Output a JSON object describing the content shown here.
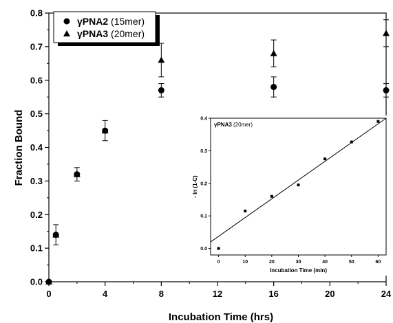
{
  "chart_data": [
    {
      "type": "scatter",
      "title": "",
      "xlabel": "Incubation Time (hrs)",
      "ylabel": "Fraction Bound",
      "xlim": [
        0,
        24
      ],
      "ylim": [
        0,
        0.8
      ],
      "xticks": [
        "0",
        "4",
        "8",
        "12",
        "16",
        "20",
        "24"
      ],
      "yticks": [
        "0.0",
        "0.1",
        "0.2",
        "0.3",
        "0.4",
        "0.5",
        "0.6",
        "0.7",
        "0.8"
      ],
      "x": [
        0,
        0.5,
        2,
        4,
        8,
        16,
        24
      ],
      "legend": {
        "placement": "top-left",
        "entries": [
          {
            "bold": "γPNA2",
            "rest": " (15mer)",
            "marker": "circle"
          },
          {
            "bold": "γPNA3",
            "rest": " (20mer)",
            "marker": "triangle"
          }
        ]
      },
      "series": [
        {
          "name": "γPNA2 (15mer)",
          "marker": "circle",
          "values": [
            0.0,
            0.14,
            0.32,
            0.45,
            0.57,
            0.58,
            0.57
          ],
          "errors": [
            0.0,
            0.0,
            0.0,
            0.0,
            0.02,
            0.03,
            0.02
          ]
        },
        {
          "name": "γPNA3 (20mer)",
          "marker": "triangle",
          "values": [
            0.0,
            0.14,
            0.32,
            0.45,
            0.66,
            0.68,
            0.74
          ],
          "errors": [
            0.0,
            0.03,
            0.02,
            0.03,
            0.05,
            0.04,
            0.04
          ]
        }
      ]
    },
    {
      "type": "scatter",
      "title": "γPNA3 (20mer)",
      "title_bold": "γPNA3",
      "title_rest": " (20mer)",
      "xlabel": "Incubation Time (min)",
      "ylabel": "- ln (1-C)",
      "xlim": [
        -3,
        63
      ],
      "ylim": [
        -0.02,
        0.4
      ],
      "xticks": [
        "0",
        "10",
        "20",
        "30",
        "40",
        "50",
        "60"
      ],
      "yticks": [
        "0.0",
        "0.1",
        "0.2",
        "0.3",
        "0.4"
      ],
      "series": [
        {
          "marker": "square",
          "x": [
            0,
            10,
            20,
            30,
            40,
            50,
            60
          ],
          "values": [
            0.0,
            0.115,
            0.16,
            0.195,
            0.275,
            0.327,
            0.39
          ]
        }
      ],
      "fit_line": {
        "x": [
          -3,
          63
        ],
        "y": [
          0.02,
          0.4
        ]
      }
    }
  ]
}
